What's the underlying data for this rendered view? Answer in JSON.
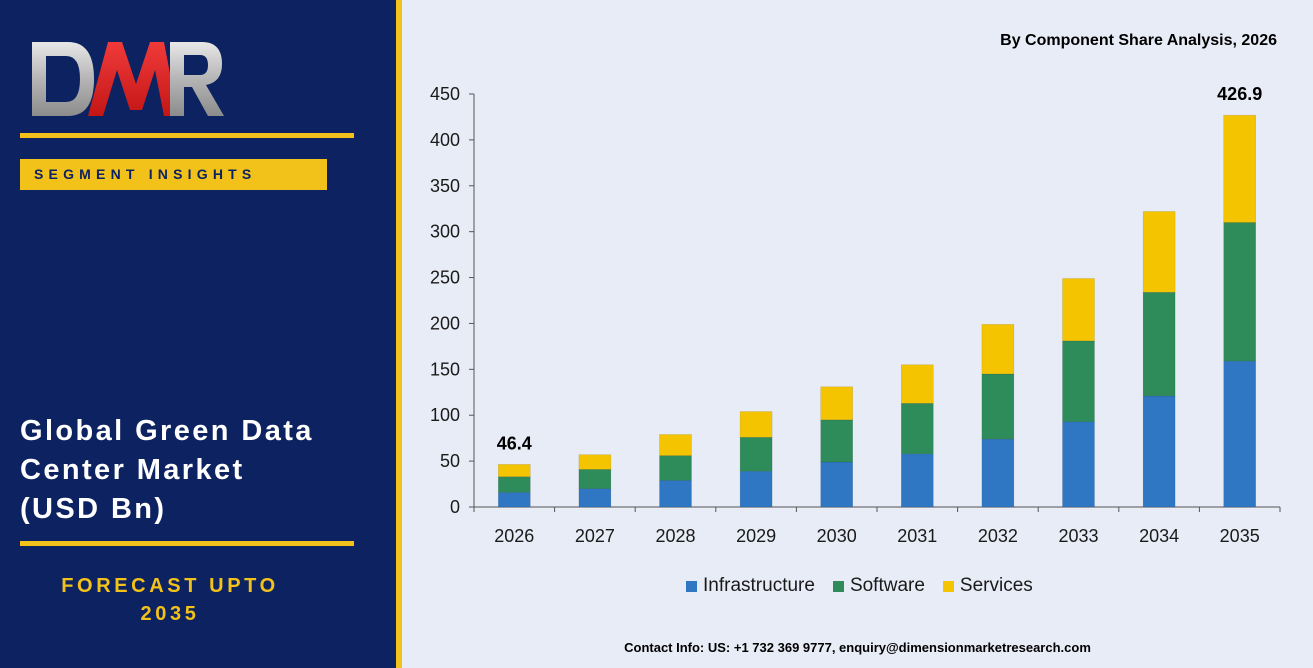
{
  "brand": {
    "logo_text": "DMR"
  },
  "left_panel": {
    "badge": "SEGMENT INSIGHTS",
    "title_lines": [
      "Global Green Data",
      "Center Market",
      "(USD Bn)"
    ],
    "forecast_lines": [
      "FORECAST UPTO",
      "2035"
    ]
  },
  "colors": {
    "panel_bg": "#0d2260",
    "accent_gold": "#f2c21a",
    "chart_bg": "#e8ecf6",
    "infrastructure": "#2f77c2",
    "software": "#2e8b5a",
    "services": "#f5c400"
  },
  "contact": "Contact Info: US: +1 732 369 9777, enquiry@dimensionmarketresearch.com",
  "chart_data": {
    "type": "bar",
    "stacked": true,
    "title": "By Component Share Analysis, 2026",
    "xlabel": "",
    "ylabel": "",
    "ylim": [
      0,
      450
    ],
    "yticks": [
      0,
      50,
      100,
      150,
      200,
      250,
      300,
      350,
      400,
      450
    ],
    "categories": [
      "2026",
      "2027",
      "2028",
      "2029",
      "2030",
      "2031",
      "2032",
      "2033",
      "2034",
      "2035"
    ],
    "series": [
      {
        "name": "Infrastructure",
        "color": "#2f77c2",
        "values": [
          16,
          20,
          29,
          39,
          49,
          58,
          74,
          93,
          121,
          159
        ]
      },
      {
        "name": "Software",
        "color": "#2e8b5a",
        "values": [
          17,
          21,
          27,
          37,
          46,
          55,
          71,
          88,
          113,
          151
        ]
      },
      {
        "name": "Services",
        "color": "#f5c400",
        "values": [
          13.4,
          16,
          23,
          28,
          36,
          42,
          54,
          68,
          88,
          116.9
        ]
      }
    ],
    "data_labels": [
      {
        "category": "2026",
        "text": "46.4"
      },
      {
        "category": "2035",
        "text": "426.9"
      }
    ],
    "grid": false,
    "legend_position": "bottom"
  }
}
